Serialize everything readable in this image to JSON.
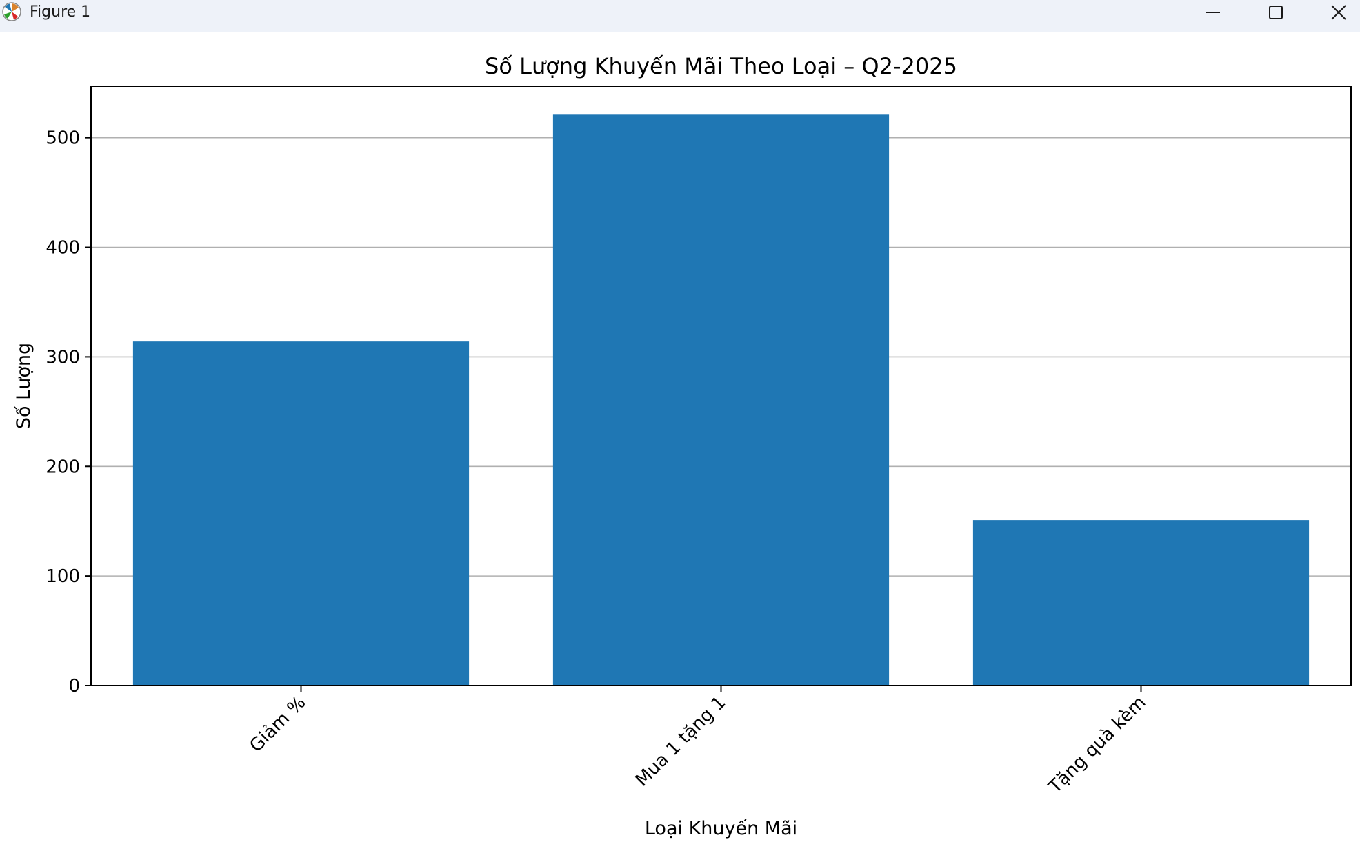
{
  "window": {
    "title": "Figure 1",
    "icons": {
      "app": "matplotlib-icon",
      "minimize": "minimize-icon",
      "maximize": "maximize-icon",
      "close": "close-icon"
    }
  },
  "chart_data": {
    "type": "bar",
    "title": "Số Lượng Khuyến Mãi Theo Loại – Q2-2025",
    "xlabel": "Loại Khuyến Mãi",
    "ylabel": "Số Lượng",
    "categories": [
      "Giảm %",
      "Mua 1 tặng 1",
      "Tặng quà kèm"
    ],
    "values": [
      314,
      521,
      151
    ],
    "ylim": [
      0,
      547
    ],
    "yticks": [
      0,
      100,
      200,
      300,
      400,
      500
    ],
    "grid": "y",
    "bar_color": "#1f77b4",
    "tick_label_rotation": 45
  }
}
